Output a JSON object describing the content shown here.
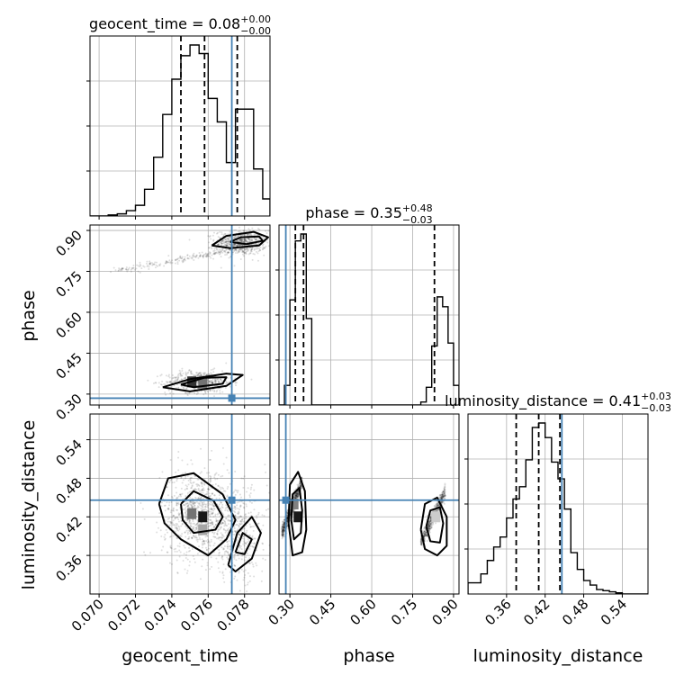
{
  "chart_data": {
    "type": "corner",
    "colors": {
      "truth": "#4682b4",
      "hist": "#000000",
      "grid": "#b0b0b0",
      "scatter": "#000000"
    },
    "grid": true,
    "parameters": [
      {
        "name": "geocent_time",
        "axis_label": "geocent_time",
        "range": [
          0.0695,
          0.0794
        ],
        "ticks": [
          0.07,
          0.072,
          0.074,
          0.076,
          0.078
        ],
        "tick_labels": [
          "0.070",
          "0.072",
          "0.074",
          "0.076",
          "0.078"
        ],
        "title": {
          "text": "geocent_time = 0.08",
          "sup": "+0.00",
          "sub": "−0.00"
        },
        "quantiles": [
          0.0745,
          0.0758,
          0.0776
        ],
        "truth": 0.0773,
        "hist": {
          "edges": [
            0.0695,
            0.07,
            0.0705,
            0.071,
            0.0715,
            0.072,
            0.0725,
            0.073,
            0.0735,
            0.074,
            0.0745,
            0.075,
            0.0755,
            0.076,
            0.0765,
            0.077,
            0.0775,
            0.078,
            0.0785,
            0.079,
            0.0794
          ],
          "counts": [
            0,
            0,
            1,
            2,
            5,
            10,
            25,
            55,
            95,
            128,
            150,
            160,
            152,
            110,
            88,
            50,
            100,
            100,
            44,
            16
          ]
        }
      },
      {
        "name": "phase",
        "axis_label": "phase",
        "range": [
          0.26,
          0.92
        ],
        "ticks": [
          0.3,
          0.45,
          0.6,
          0.75,
          0.9
        ],
        "tick_labels": [
          "0.30",
          "0.45",
          "0.60",
          "0.75",
          "0.90"
        ],
        "title": {
          "text": "phase = 0.35",
          "sup": "+0.48",
          "sub": "−0.03"
        },
        "quantiles": [
          0.32,
          0.35,
          0.83
        ],
        "truth": 0.285,
        "hist": {
          "edges": [
            0.26,
            0.28,
            0.3,
            0.32,
            0.34,
            0.36,
            0.38,
            0.4,
            0.42,
            0.44,
            0.46,
            0.48,
            0.5,
            0.52,
            0.54,
            0.56,
            0.58,
            0.6,
            0.62,
            0.64,
            0.66,
            0.68,
            0.7,
            0.72,
            0.74,
            0.76,
            0.78,
            0.8,
            0.82,
            0.84,
            0.86,
            0.88,
            0.9,
            0.92
          ],
          "counts": [
            0,
            20,
            107,
            167,
            174,
            88,
            0,
            0,
            0,
            0,
            0,
            0,
            0,
            0,
            0,
            0,
            0,
            0,
            0,
            0,
            0,
            0,
            0,
            0,
            0,
            0,
            3,
            18,
            60,
            110,
            100,
            63,
            20
          ]
        }
      },
      {
        "name": "luminosity_distance",
        "axis_label": "luminosity_distance",
        "range": [
          0.3,
          0.58
        ],
        "ticks": [
          0.36,
          0.42,
          0.48,
          0.54
        ],
        "tick_labels": [
          "0.36",
          "0.42",
          "0.48",
          "0.54"
        ],
        "title": {
          "text": "luminosity_distance = 0.41",
          "sup": "+0.03",
          "sub": "−0.03"
        },
        "quantiles": [
          0.375,
          0.41,
          0.443
        ],
        "truth": 0.446,
        "hist": {
          "edges": [
            0.3,
            0.31,
            0.32,
            0.33,
            0.34,
            0.35,
            0.36,
            0.37,
            0.38,
            0.39,
            0.4,
            0.41,
            0.42,
            0.43,
            0.44,
            0.45,
            0.46,
            0.47,
            0.48,
            0.49,
            0.5,
            0.51,
            0.52,
            0.53,
            0.54,
            0.55,
            0.56,
            0.57,
            0.58
          ],
          "counts": [
            10,
            10,
            18,
            30,
            42,
            51,
            68,
            85,
            96,
            120,
            149,
            153,
            140,
            118,
            103,
            76,
            37,
            22,
            12,
            8,
            4,
            3,
            2,
            1,
            0,
            0,
            0,
            0
          ]
        }
      }
    ],
    "panels_2d": [
      {
        "x": "geocent_time",
        "y": "phase",
        "clusters": [
          {
            "mx": 0.0778,
            "my": 0.855,
            "sx": 0.0007,
            "sy": 0.022,
            "n": 700
          },
          {
            "mx": 0.0755,
            "my": 0.345,
            "sx": 0.0009,
            "sy": 0.02,
            "n": 550
          },
          {
            "mx": 0.0752,
            "my": 0.78,
            "sx": 0.0022,
            "sy": 0.02,
            "n": 200
          }
        ],
        "contours": [
          [
            [
              0.0762,
              0.845
            ],
            [
              0.077,
              0.88
            ],
            [
              0.0785,
              0.895
            ],
            [
              0.0793,
              0.875
            ],
            [
              0.0788,
              0.845
            ],
            [
              0.0772,
              0.835
            ],
            [
              0.0762,
              0.845
            ]
          ],
          [
            [
              0.0772,
              0.858
            ],
            [
              0.0778,
              0.875
            ],
            [
              0.0788,
              0.878
            ],
            [
              0.079,
              0.862
            ],
            [
              0.0781,
              0.85
            ],
            [
              0.0772,
              0.858
            ]
          ],
          [
            [
              0.0735,
              0.325
            ],
            [
              0.075,
              0.355
            ],
            [
              0.077,
              0.375
            ],
            [
              0.0779,
              0.37
            ],
            [
              0.077,
              0.33
            ],
            [
              0.075,
              0.31
            ],
            [
              0.0735,
              0.325
            ]
          ],
          [
            [
              0.0745,
              0.335
            ],
            [
              0.0758,
              0.36
            ],
            [
              0.077,
              0.362
            ],
            [
              0.0768,
              0.338
            ],
            [
              0.0752,
              0.325
            ],
            [
              0.0745,
              0.335
            ]
          ]
        ],
        "density_cells": [
          {
            "x": 0.0751,
            "y": 0.345,
            "level": 0.8
          },
          {
            "x": 0.0757,
            "y": 0.34,
            "level": 0.55
          }
        ]
      },
      {
        "x": "geocent_time",
        "y": "luminosity_distance",
        "clusters": [
          {
            "mx": 0.0755,
            "my": 0.425,
            "sx": 0.001,
            "sy": 0.035,
            "n": 1000
          },
          {
            "mx": 0.0777,
            "my": 0.39,
            "sx": 0.0008,
            "sy": 0.035,
            "n": 400
          }
        ],
        "contours": [
          [
            [
              0.0733,
              0.44
            ],
            [
              0.0738,
              0.48
            ],
            [
              0.0752,
              0.488
            ],
            [
              0.0768,
              0.455
            ],
            [
              0.0775,
              0.415
            ],
            [
              0.077,
              0.385
            ],
            [
              0.076,
              0.36
            ],
            [
              0.0745,
              0.385
            ],
            [
              0.0736,
              0.41
            ],
            [
              0.0733,
              0.44
            ]
          ],
          [
            [
              0.0745,
              0.44
            ],
            [
              0.0752,
              0.46
            ],
            [
              0.0763,
              0.445
            ],
            [
              0.0768,
              0.42
            ],
            [
              0.0764,
              0.4
            ],
            [
              0.0752,
              0.395
            ],
            [
              0.0746,
              0.415
            ],
            [
              0.0745,
              0.44
            ]
          ],
          [
            [
              0.0771,
              0.345
            ],
            [
              0.0776,
              0.395
            ],
            [
              0.0784,
              0.42
            ],
            [
              0.0789,
              0.395
            ],
            [
              0.0784,
              0.355
            ],
            [
              0.0775,
              0.335
            ],
            [
              0.0771,
              0.345
            ]
          ],
          [
            [
              0.0775,
              0.365
            ],
            [
              0.0779,
              0.395
            ],
            [
              0.0784,
              0.385
            ],
            [
              0.078,
              0.362
            ],
            [
              0.0775,
              0.365
            ]
          ]
        ],
        "density_cells": [
          {
            "x": 0.0757,
            "y": 0.42,
            "level": 0.9
          },
          {
            "x": 0.0751,
            "y": 0.425,
            "level": 0.55
          },
          {
            "x": 0.0757,
            "y": 0.4,
            "level": 0.35
          }
        ]
      },
      {
        "x": "phase",
        "y": "luminosity_distance",
        "clusters": [
          {
            "mx": 0.32,
            "my": 0.425,
            "sx": 0.025,
            "sy": 0.04,
            "n": 800
          },
          {
            "mx": 0.84,
            "my": 0.41,
            "sx": 0.03,
            "sy": 0.03,
            "n": 600
          }
        ],
        "contours": [
          [
            [
              0.295,
              0.41
            ],
            [
              0.3,
              0.47
            ],
            [
              0.33,
              0.49
            ],
            [
              0.355,
              0.46
            ],
            [
              0.36,
              0.4
            ],
            [
              0.345,
              0.365
            ],
            [
              0.31,
              0.36
            ],
            [
              0.295,
              0.41
            ]
          ],
          [
            [
              0.305,
              0.415
            ],
            [
              0.31,
              0.455
            ],
            [
              0.335,
              0.465
            ],
            [
              0.345,
              0.43
            ],
            [
              0.34,
              0.395
            ],
            [
              0.315,
              0.385
            ],
            [
              0.305,
              0.415
            ]
          ],
          [
            [
              0.78,
              0.4
            ],
            [
              0.795,
              0.44
            ],
            [
              0.84,
              0.45
            ],
            [
              0.875,
              0.42
            ],
            [
              0.875,
              0.375
            ],
            [
              0.84,
              0.36
            ],
            [
              0.795,
              0.37
            ],
            [
              0.78,
              0.4
            ]
          ],
          [
            [
              0.8,
              0.405
            ],
            [
              0.815,
              0.43
            ],
            [
              0.85,
              0.435
            ],
            [
              0.862,
              0.41
            ],
            [
              0.85,
              0.38
            ],
            [
              0.815,
              0.382
            ],
            [
              0.8,
              0.405
            ]
          ]
        ],
        "density_cells": [
          {
            "x": 0.33,
            "y": 0.42,
            "level": 0.9
          },
          {
            "x": 0.315,
            "y": 0.44,
            "level": 0.5
          },
          {
            "x": 0.835,
            "y": 0.42,
            "level": 0.2
          }
        ]
      }
    ]
  }
}
